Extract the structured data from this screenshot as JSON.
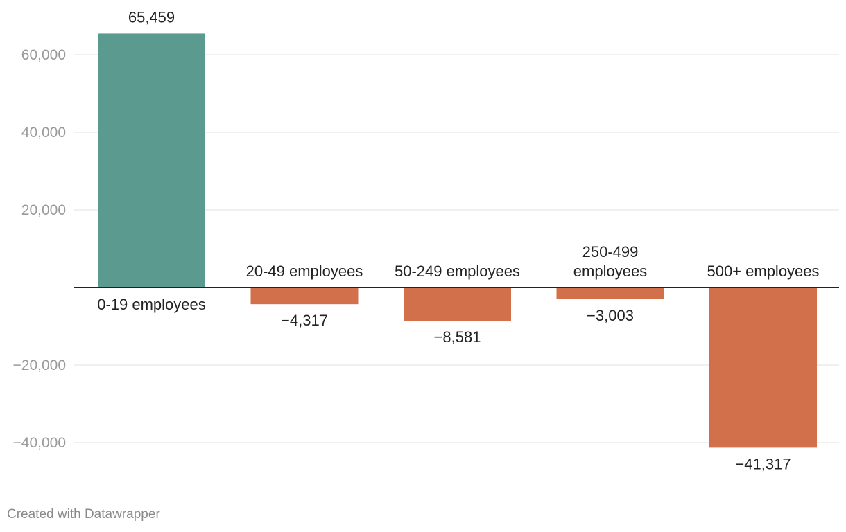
{
  "chart_data": {
    "type": "bar",
    "categories": [
      "0-19 employees",
      "20-49 employees",
      "50-249 employees",
      "250-499 employees",
      "500+ employees"
    ],
    "category_label_lines": [
      [
        "0-19 employees"
      ],
      [
        "20-49 employees"
      ],
      [
        "50-249 employees"
      ],
      [
        "250-499",
        "employees"
      ],
      [
        "500+ employees"
      ]
    ],
    "values": [
      65459,
      -4317,
      -8581,
      -3003,
      -41317
    ],
    "value_labels": [
      "65,459",
      "−4,317",
      "−8,581",
      "−3,003",
      "−41,317"
    ],
    "yticks": [
      60000,
      40000,
      20000,
      -20000,
      -40000
    ],
    "ytick_labels": [
      "60,000",
      "40,000",
      "20,000",
      "−20,000",
      "−40,000"
    ],
    "ylim": [
      -47000,
      69000
    ],
    "grid": true,
    "colors": {
      "positive": "#5a9a8f",
      "negative": "#d2704c",
      "grid": "#e2e2e2",
      "baseline": "#222222"
    },
    "title": "",
    "xlabel": "",
    "ylabel": ""
  },
  "footer": {
    "credit": "Created with Datawrapper"
  }
}
